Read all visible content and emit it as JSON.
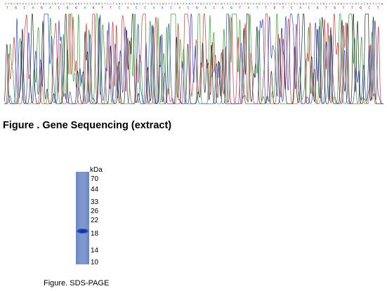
{
  "sequencing": {
    "caption": "Figure . Gene Sequencing (extract)",
    "base_colors": {
      "A": "#1a9a1a",
      "C": "#2233cc",
      "G": "#111111",
      "T": "#cc2222"
    },
    "base_trace_sequence": "ATGCGTACCGATTGCAAGTCCTGAGGCTATCGGATCCTAGCTTAGGCATCGTACGATCCGTAAGCTTGCA"
  },
  "gel": {
    "unit": "kDa",
    "markers": [
      "70",
      "44",
      "33",
      "26",
      "22",
      "18",
      "14",
      "10"
    ],
    "band_at_kda": 18.6,
    "caption": "Figure. SDS-PAGE"
  }
}
